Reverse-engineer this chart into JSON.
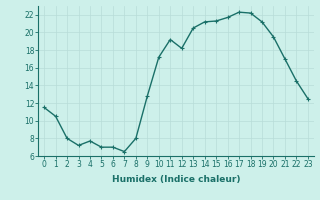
{
  "x": [
    0,
    1,
    2,
    3,
    4,
    5,
    6,
    7,
    8,
    9,
    10,
    11,
    12,
    13,
    14,
    15,
    16,
    17,
    18,
    19,
    20,
    21,
    22,
    23
  ],
  "y": [
    11.5,
    10.5,
    8.0,
    7.2,
    7.7,
    7.0,
    7.0,
    6.5,
    8.0,
    12.8,
    17.2,
    19.2,
    18.2,
    20.5,
    21.2,
    21.3,
    21.7,
    22.3,
    22.2,
    21.2,
    19.5,
    17.0,
    14.5,
    12.5
  ],
  "line_color": "#1a7068",
  "marker": "+",
  "marker_size": 3.5,
  "bg_color": "#cdf0ea",
  "grid_color": "#b8ddd8",
  "xlabel": "Humidex (Indice chaleur)",
  "xlim": [
    -0.5,
    23.5
  ],
  "ylim": [
    6,
    23
  ],
  "yticks": [
    6,
    8,
    10,
    12,
    14,
    16,
    18,
    20,
    22
  ],
  "xticks": [
    0,
    1,
    2,
    3,
    4,
    5,
    6,
    7,
    8,
    9,
    10,
    11,
    12,
    13,
    14,
    15,
    16,
    17,
    18,
    19,
    20,
    21,
    22,
    23
  ],
  "xlabel_fontsize": 6.5,
  "tick_fontsize": 5.5,
  "line_width": 1.0,
  "marker_edge_width": 0.8
}
